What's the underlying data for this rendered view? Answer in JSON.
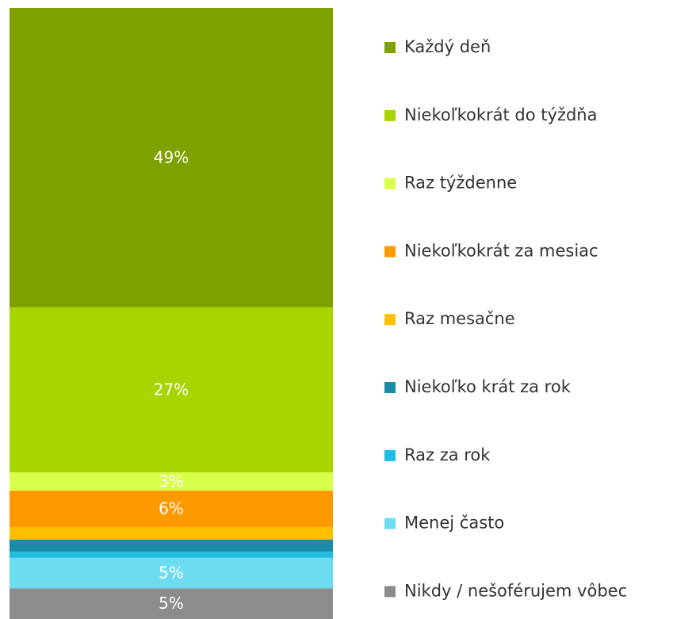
{
  "chart_data": {
    "type": "stacked_bar",
    "series": [
      {
        "name": "Každý deň",
        "color": "#7fa100",
        "values": [
          49
        ],
        "value_labels": [
          "49%"
        ]
      },
      {
        "name": "Niekoľkokrát do týždňa",
        "color": "#a8d400",
        "values": [
          27
        ],
        "value_labels": [
          "27%"
        ]
      },
      {
        "name": "Raz týždenne",
        "color": "#d9ff4a",
        "values": [
          3
        ],
        "value_labels": [
          "3%"
        ]
      },
      {
        "name": "Niekoľkokrát za mesiac",
        "color": "#ff9900",
        "values": [
          6
        ],
        "value_labels": [
          "6%"
        ]
      },
      {
        "name": "Raz mesačne",
        "color": "#ffc000",
        "values": [
          2
        ],
        "value_labels": [
          null
        ]
      },
      {
        "name": "Niekoľko krát za rok",
        "color": "#1a8ca8",
        "values": [
          2
        ],
        "value_labels": [
          null
        ]
      },
      {
        "name": "Raz za rok",
        "color": "#1fbde0",
        "values": [
          1
        ],
        "value_labels": [
          null
        ]
      },
      {
        "name": "Menej často",
        "color": "#6edcf0",
        "values": [
          5
        ],
        "value_labels": [
          "5%"
        ]
      },
      {
        "name": "Nikdy / nešoférujem vôbec",
        "color": "#8c8c8c",
        "values": [
          5
        ],
        "value_labels": [
          "5%"
        ]
      }
    ],
    "legend": "right"
  }
}
